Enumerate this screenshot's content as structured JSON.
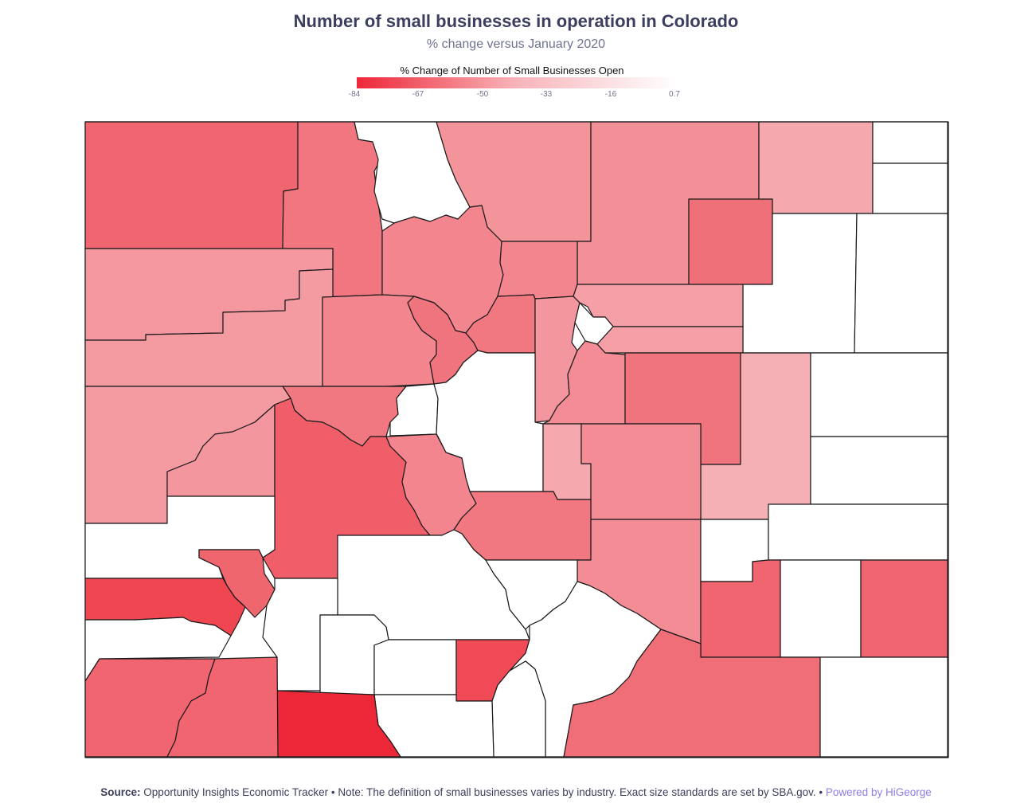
{
  "title": "Number of small businesses in operation in Colorado",
  "subtitle": "% change versus January 2020",
  "legend": {
    "title": "% Change of Number of Small Businesses Open",
    "ticks": [
      "-84",
      "-67",
      "-50",
      "-33",
      "-16",
      "0.7"
    ],
    "color_low": "#ee2737",
    "color_high": "#ffffff"
  },
  "footer": {
    "source_label": "Source:",
    "source_text": "Opportunity Insights Economic Tracker • Note: The definition of small businesses varies by industry. Exact size standards are set by SBA.gov. •",
    "powered_by": "Powered by HiGeorge"
  },
  "colors": {
    "no_data": "#ffffff",
    "border": "#1a1a1a",
    "title": "#3b3e5e",
    "accent": "#8d7ee8"
  },
  "map": {
    "region": "Colorado",
    "units": "counties",
    "value_scale": [
      -84,
      0.7
    ]
  }
}
